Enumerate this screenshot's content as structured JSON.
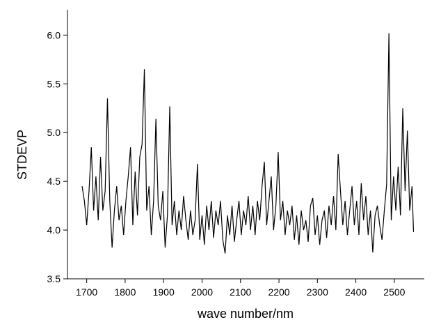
{
  "chart_data": {
    "type": "line",
    "x_label": "wave number/nm",
    "y_label": "STDEVP",
    "color": "#000000",
    "xlim": [
      1650,
      2578
    ],
    "ylim": [
      3.5,
      6.26
    ],
    "xticks": [
      1700,
      1800,
      1900,
      2000,
      2100,
      2200,
      2300,
      2400,
      2500
    ],
    "yticks": [
      3.5,
      {
        "value": 4,
        "label": "4.0"
      },
      4.5,
      {
        "value": 5,
        "label": "5.0"
      },
      5.5,
      {
        "value": 6,
        "label": "6.0"
      }
    ],
    "x": [
      1688,
      1694,
      1700,
      1706,
      1712,
      1718,
      1724,
      1730,
      1736,
      1742,
      1748,
      1754,
      1760,
      1766,
      1772,
      1778,
      1784,
      1790,
      1796,
      1802,
      1808,
      1814,
      1820,
      1826,
      1832,
      1838,
      1844,
      1850,
      1856,
      1862,
      1868,
      1874,
      1880,
      1886,
      1892,
      1898,
      1904,
      1910,
      1916,
      1922,
      1928,
      1934,
      1940,
      1946,
      1952,
      1958,
      1964,
      1970,
      1976,
      1982,
      1988,
      1994,
      2000,
      2006,
      2012,
      2018,
      2024,
      2030,
      2036,
      2042,
      2048,
      2054,
      2060,
      2066,
      2072,
      2078,
      2084,
      2090,
      2096,
      2102,
      2108,
      2114,
      2120,
      2126,
      2132,
      2138,
      2144,
      2150,
      2156,
      2162,
      2168,
      2174,
      2180,
      2186,
      2192,
      2198,
      2204,
      2210,
      2216,
      2222,
      2228,
      2234,
      2240,
      2246,
      2252,
      2258,
      2264,
      2270,
      2276,
      2282,
      2288,
      2294,
      2300,
      2306,
      2312,
      2318,
      2324,
      2330,
      2336,
      2342,
      2348,
      2354,
      2360,
      2366,
      2372,
      2378,
      2384,
      2390,
      2396,
      2402,
      2408,
      2414,
      2420,
      2426,
      2432,
      2438,
      2444,
      2450,
      2456,
      2462,
      2468,
      2474,
      2480,
      2486,
      2492,
      2498,
      2504,
      2510,
      2516,
      2522,
      2528,
      2534,
      2540,
      2546,
      2550
    ],
    "values": [
      4.45,
      4.3,
      4.05,
      4.4,
      4.85,
      4.2,
      4.55,
      4.1,
      4.75,
      4.2,
      4.4,
      5.35,
      4.3,
      3.82,
      4.2,
      4.45,
      4.1,
      4.25,
      3.95,
      4.3,
      4.55,
      4.85,
      4.05,
      4.6,
      4.15,
      4.75,
      4.88,
      5.65,
      4.2,
      4.45,
      3.95,
      4.3,
      5.14,
      4.25,
      4.1,
      4.4,
      3.82,
      4.15,
      5.27,
      4.05,
      4.3,
      3.95,
      4.2,
      4.0,
      4.35,
      4.1,
      3.9,
      4.2,
      3.95,
      4.1,
      4.68,
      3.9,
      4.15,
      3.85,
      4.25,
      4.0,
      4.3,
      3.92,
      4.2,
      4.05,
      4.3,
      3.9,
      3.76,
      4.15,
      3.95,
      4.25,
      3.88,
      4.1,
      4.3,
      3.95,
      4.2,
      4.05,
      4.35,
      4.0,
      4.25,
      3.95,
      4.3,
      4.1,
      4.45,
      4.7,
      4.05,
      4.3,
      4.55,
      4.0,
      4.25,
      4.8,
      4.1,
      4.3,
      3.95,
      4.2,
      4.05,
      4.25,
      3.9,
      4.15,
      3.85,
      4.2,
      4.0,
      4.1,
      3.88,
      4.25,
      4.33,
      3.95,
      4.15,
      3.85,
      4.1,
      4.2,
      3.92,
      4.25,
      4.05,
      4.35,
      4.0,
      4.78,
      4.4,
      4.05,
      4.3,
      3.95,
      4.2,
      4.45,
      4.05,
      4.3,
      3.95,
      4.48,
      4.1,
      4.35,
      3.95,
      4.2,
      3.77,
      4.15,
      4.25,
      4.05,
      3.9,
      4.2,
      4.47,
      6.02,
      4.1,
      4.55,
      4.2,
      4.65,
      4.15,
      5.25,
      4.4,
      5.02,
      4.2,
      4.45,
      3.98
    ]
  }
}
